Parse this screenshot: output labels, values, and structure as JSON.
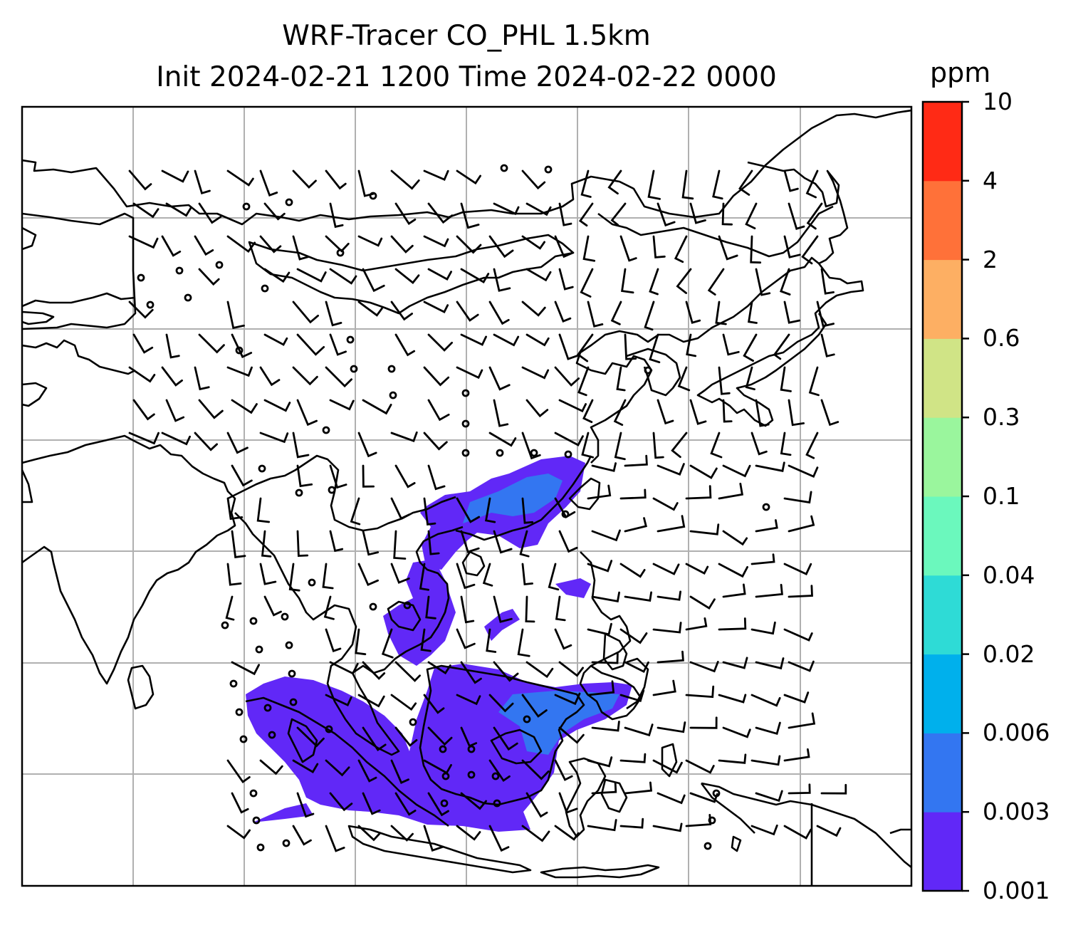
{
  "title_line1": "WRF-Tracer CO_PHL 1.5km",
  "title_line2": "Init 2024-02-21 1200 Time 2024-02-22 0000",
  "colorbar": {
    "unit": "ppm",
    "levels": [
      "0.001",
      "0.003",
      "0.006",
      "0.02",
      "0.04",
      "0.1",
      "0.3",
      "0.6",
      "2",
      "4",
      "10"
    ],
    "colors": [
      "#6128f7",
      "#3376f1",
      "#00b0ec",
      "#2edbd6",
      "#6bf8bd",
      "#9af69d",
      "#d0e486",
      "#fdaf63",
      "#ff7139",
      "#ff2a15"
    ]
  },
  "plume_colors": {
    "low": "#6128f7",
    "mid": "#3376f1"
  }
}
